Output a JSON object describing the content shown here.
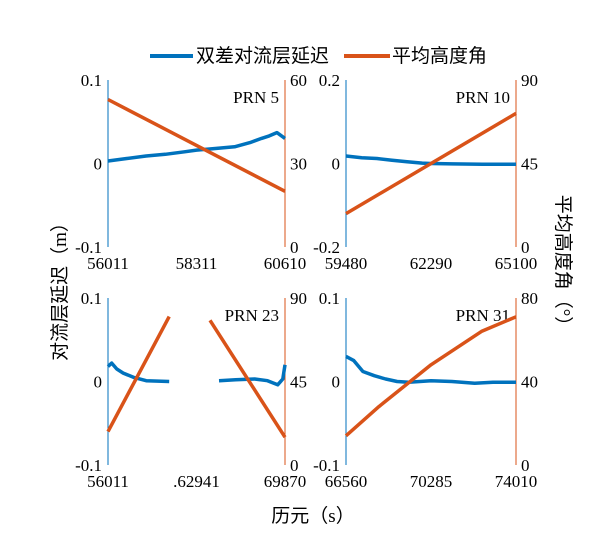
{
  "legend": {
    "items": [
      {
        "label": "双差对流层延迟",
        "color": "#0072BD"
      },
      {
        "label": "平均高度角",
        "color": "#D95319"
      }
    ]
  },
  "figure": {
    "xlabel": "历元（s）",
    "ylabel_left": "对流层延迟（m）",
    "ylabel_right": "平均高度角（°）"
  },
  "colors": {
    "left_series": "#0072BD",
    "right_series": "#D95319"
  },
  "chart_data": [
    {
      "type": "line",
      "title": "PRN 5",
      "xlim": [
        56011,
        60610
      ],
      "xticks": [
        "56011",
        "58311",
        "60610"
      ],
      "left_axis": {
        "ylim": [
          -0.1,
          0.1
        ],
        "ticks": [
          "0.1",
          "0",
          "-0.1"
        ]
      },
      "right_axis": {
        "ylim": [
          0,
          60
        ],
        "ticks": [
          "60",
          "30",
          "0"
        ]
      },
      "series": [
        {
          "name": "双差对流层延迟",
          "axis": "left",
          "x": [
            56011,
            56500,
            57000,
            57500,
            58000,
            58311,
            58800,
            59300,
            59700,
            60000,
            60200,
            60400,
            60610
          ],
          "y": [
            0.003,
            0.006,
            0.009,
            0.011,
            0.014,
            0.016,
            0.018,
            0.02,
            0.025,
            0.03,
            0.033,
            0.037,
            0.03
          ]
        },
        {
          "name": "平均高度角",
          "axis": "right",
          "x": [
            56011,
            58311,
            60610
          ],
          "y": [
            53,
            36.5,
            20
          ]
        }
      ]
    },
    {
      "type": "line",
      "title": "PRN 10",
      "xlim": [
        59480,
        65100
      ],
      "xticks": [
        "59480",
        "62290",
        "65100"
      ],
      "left_axis": {
        "ylim": [
          -0.2,
          0.2
        ],
        "ticks": [
          "0.2",
          "0",
          "-0.2"
        ]
      },
      "right_axis": {
        "ylim": [
          0,
          90
        ],
        "ticks": [
          "90",
          "45",
          "0"
        ]
      },
      "series": [
        {
          "name": "双差对流层延迟",
          "axis": "left",
          "x": [
            59480,
            60000,
            60500,
            61000,
            61500,
            62000,
            62290,
            63000,
            64000,
            65100
          ],
          "y": [
            0.018,
            0.014,
            0.012,
            0.008,
            0.004,
            0.001,
            0.0,
            -0.001,
            -0.002,
            -0.002
          ]
        },
        {
          "name": "平均高度角",
          "axis": "right",
          "x": [
            59480,
            62290,
            65100
          ],
          "y": [
            18,
            45,
            72
          ]
        }
      ]
    },
    {
      "type": "line",
      "title": "PRN 23",
      "xlim": [
        56011,
        69870
      ],
      "xticks": [
        "56011",
        ".62941",
        "69870"
      ],
      "left_axis": {
        "ylim": [
          -0.1,
          0.1
        ],
        "ticks": [
          "0.1",
          "0",
          "-0.1"
        ]
      },
      "right_axis": {
        "ylim": [
          0,
          90
        ],
        "ticks": [
          "90",
          "45",
          "0"
        ]
      },
      "series": [
        {
          "name": "双差对流层延迟",
          "axis": "left",
          "x": [
            56011,
            56300,
            56700,
            57200,
            58000,
            59000,
            60800,
            null,
            64700,
            66000,
            67500,
            68500,
            69300,
            69700,
            69870
          ],
          "y": [
            0.018,
            0.022,
            0.015,
            0.01,
            0.005,
            0.001,
            0.0,
            null,
            0.001,
            0.002,
            0.003,
            0.001,
            -0.004,
            0.003,
            0.02
          ]
        },
        {
          "name": "平均高度角",
          "axis": "right",
          "x": [
            56011,
            60800,
            null,
            64000,
            69870
          ],
          "y": [
            18,
            80,
            null,
            78,
            15
          ]
        }
      ]
    },
    {
      "type": "line",
      "title": "PRN 31",
      "xlim": [
        66560,
        74010
      ],
      "xticks": [
        "66560",
        "70285",
        "74010"
      ],
      "left_axis": {
        "ylim": [
          -0.1,
          0.1
        ],
        "ticks": [
          "0.1",
          "0",
          "-0.1"
        ]
      },
      "right_axis": {
        "ylim": [
          0,
          80
        ],
        "ticks": [
          "80",
          "40",
          "0"
        ]
      },
      "series": [
        {
          "name": "双差对流层延迟",
          "axis": "left",
          "x": [
            66560,
            66900,
            67300,
            67800,
            68300,
            68800,
            69300,
            70285,
            71200,
            72200,
            73000,
            74010
          ],
          "y": [
            0.03,
            0.025,
            0.012,
            0.007,
            0.003,
            0.0,
            -0.001,
            0.001,
            0.0,
            -0.002,
            -0.001,
            -0.001
          ]
        },
        {
          "name": "平均高度角",
          "axis": "right",
          "x": [
            66560,
            68000,
            70285,
            72500,
            74010
          ],
          "y": [
            14,
            28,
            48,
            64,
            71
          ]
        }
      ]
    }
  ]
}
